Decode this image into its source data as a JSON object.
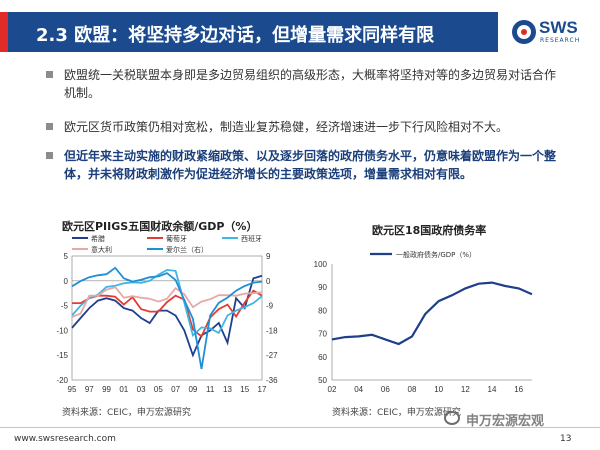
{
  "header": {
    "title": "2.3 欧盟：将坚持多边对话，但增量需求同样有限",
    "logo_name": "SWS",
    "logo_sub": "RESEARCH"
  },
  "bullets": [
    {
      "text": "欧盟统一关税联盟本身即是多边贸易组织的高级形态，大概率将坚持对等的多边贸易对话合作机制。",
      "bold": false
    },
    {
      "text": "欧元区货币政策仍相对宽松，制造业复苏稳健，经济增速进一步下行风险相对不大。",
      "bold": false
    },
    {
      "text": "但近年来主动实施的财政紧缩政策、以及逐步回落的政府债务水平，仍意味着欧盟作为一个整体，并未将财政刺激作为促进经济增长的主要政策选项，增量需求相对有限。",
      "bold": true
    }
  ],
  "chart_data": [
    {
      "type": "line",
      "title": "欧元区PIIGS五国财政余额/GDP（%）",
      "x": [
        1995,
        1996,
        1997,
        1998,
        1999,
        2000,
        2001,
        2002,
        2003,
        2004,
        2005,
        2006,
        2007,
        2008,
        2009,
        2010,
        2011,
        2012,
        2013,
        2014,
        2015,
        2016,
        2017
      ],
      "xticks": [
        "95",
        "97",
        "99",
        "01",
        "03",
        "05",
        "07",
        "09",
        "11",
        "13",
        "15",
        "17"
      ],
      "ylim_left": [
        -20,
        5
      ],
      "yticks_left": [
        "5",
        "0",
        "-5",
        "-10",
        "-15",
        "-20"
      ],
      "ylim_right": [
        -36,
        9
      ],
      "yticks_right": [
        "9",
        "0",
        "-9",
        "-18",
        "-27",
        "-36"
      ],
      "series": [
        {
          "name": "希腊",
          "axis": "left",
          "color": "#1f3f8a",
          "values": [
            -9.5,
            -7.5,
            -5.5,
            -4,
            -3.5,
            -4,
            -5.5,
            -6,
            -7.5,
            -8.5,
            -6,
            -6,
            -7,
            -10,
            -15,
            -11,
            -10,
            -8.5,
            -12.5,
            -3.5,
            -5.5,
            0.5,
            1
          ]
        },
        {
          "name": "葡萄牙",
          "axis": "left",
          "color": "#e23d32",
          "values": [
            -4.5,
            -4.5,
            -3.5,
            -3,
            -3,
            -3.2,
            -4.8,
            -3.3,
            -5.7,
            -6.2,
            -6.2,
            -4.3,
            -3,
            -3.8,
            -9.8,
            -11.2,
            -7.4,
            -5.7,
            -4.8,
            -7.2,
            -4.4,
            -2,
            -3
          ]
        },
        {
          "name": "西班牙",
          "axis": "left",
          "color": "#3fb6e3",
          "values": [
            -7,
            -5,
            -3.5,
            -2.8,
            -1.2,
            -1,
            -0.5,
            -0.3,
            -0.4,
            0,
            1.2,
            2.2,
            2,
            -4.4,
            -11,
            -9.4,
            -9.6,
            -10.5,
            -7,
            -6,
            -5.3,
            -4.5,
            -3.1
          ]
        },
        {
          "name": "意大利",
          "axis": "left",
          "color": "#e6a9a9",
          "values": [
            -7.3,
            -6.6,
            -3,
            -3,
            -1.8,
            -1.3,
            -3.4,
            -3.1,
            -3.4,
            -3.6,
            -4.2,
            -3.6,
            -1.5,
            -2.7,
            -5.3,
            -4.2,
            -3.7,
            -2.9,
            -2.9,
            -3,
            -2.6,
            -2.5,
            -2.3
          ]
        },
        {
          "name": "爱尔兰（右）",
          "axis": "right",
          "color": "#1f8fd6",
          "values": [
            -2,
            -0.1,
            1.3,
            2,
            2.4,
            4.7,
            0.9,
            -0.3,
            0.4,
            1.3,
            1.6,
            2.8,
            0.3,
            -7,
            -13.8,
            -32,
            -12.6,
            -8,
            -6.1,
            -3.6,
            -1.9,
            -0.7,
            -0.3
          ]
        }
      ]
    },
    {
      "type": "line",
      "title": "欧元区18国政府债务率",
      "x": [
        2002,
        2003,
        2004,
        2005,
        2006,
        2007,
        2008,
        2009,
        2010,
        2011,
        2012,
        2013,
        2014,
        2015,
        2016,
        2017
      ],
      "xticks": [
        "02",
        "04",
        "06",
        "08",
        "10",
        "12",
        "14",
        "16"
      ],
      "ylim": [
        50,
        100
      ],
      "yticks": [
        "100",
        "90",
        "80",
        "70",
        "60",
        "50"
      ],
      "series": [
        {
          "name": "一般政府债务/GDP（%）",
          "color": "#1f3f8a",
          "values": [
            67.5,
            68.5,
            68.8,
            69.5,
            67.5,
            65.5,
            68.8,
            78.5,
            84,
            86.5,
            89.5,
            91.5,
            92,
            90.5,
            89.5,
            87
          ]
        }
      ]
    }
  ],
  "sources": [
    "资料来源：CEIC，申万宏源研究",
    "资料来源：CEIC，申万宏源研究"
  ],
  "footer": {
    "url": "www.swsresearch.com",
    "page": "13",
    "watermark": "申万宏源宏观"
  }
}
